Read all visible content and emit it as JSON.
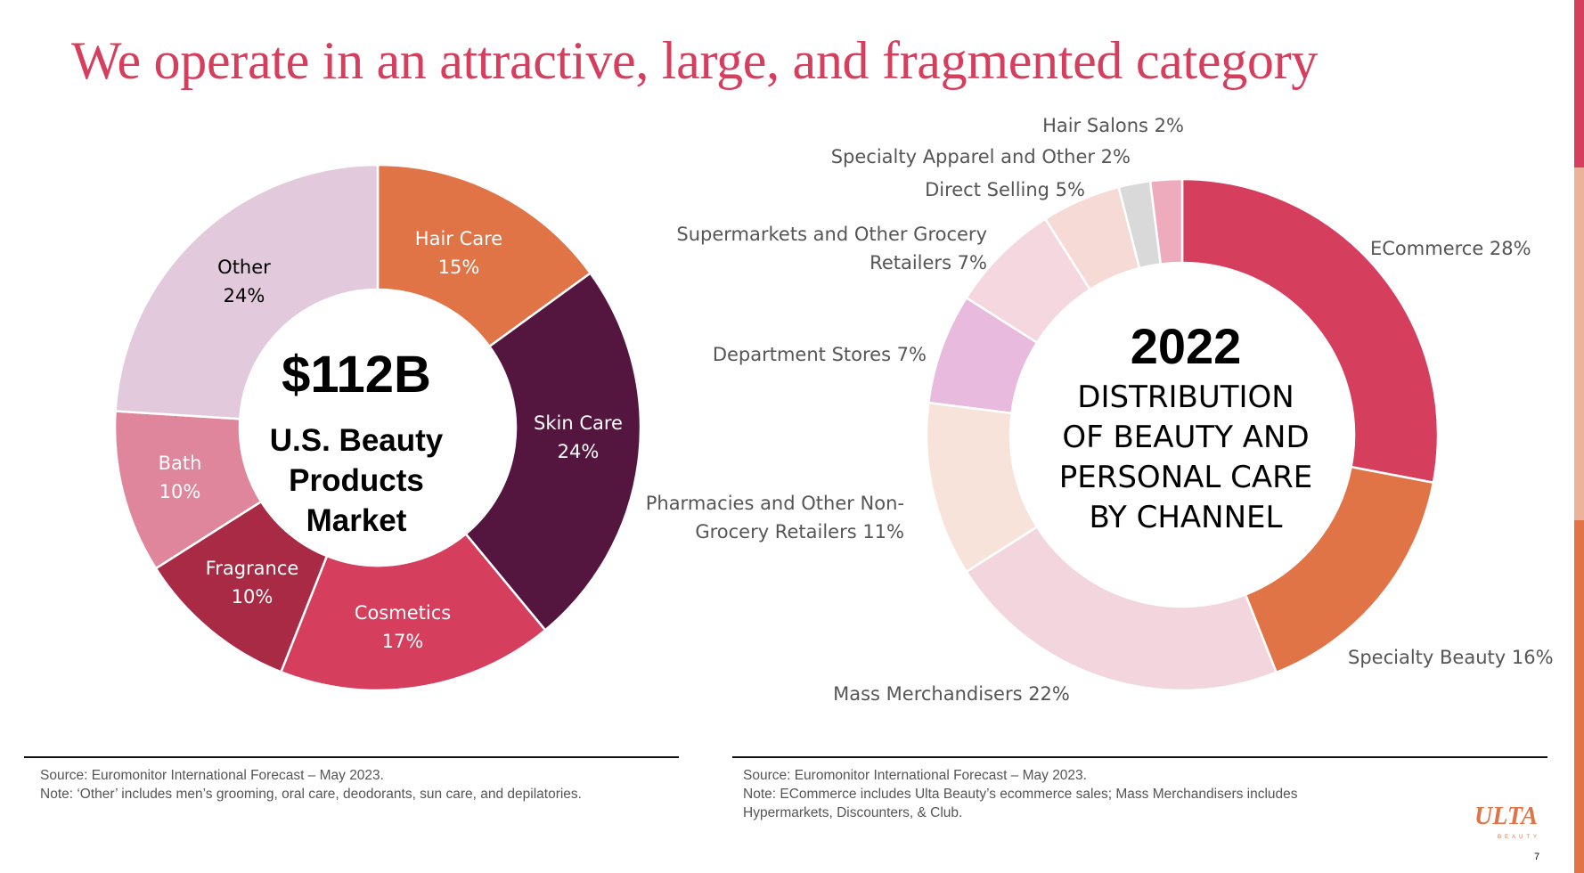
{
  "title": "We operate in an attractive, large, and fragmented category",
  "chart_data": [
    {
      "type": "pie",
      "variant": "donut",
      "start": "top",
      "direction": "clockwise",
      "center_title": "$112B",
      "center_subtitle": [
        "U.S. Beauty",
        "Products",
        "Market"
      ],
      "categories": [
        "Hair Care",
        "Skin Care",
        "Cosmetics",
        "Fragrance",
        "Bath",
        "Other"
      ],
      "values": [
        15,
        24,
        17,
        10,
        10,
        24
      ],
      "value_labels": [
        "15%",
        "24%",
        "17%",
        "10%",
        "10%",
        "24%"
      ],
      "colors": [
        "#e07446",
        "#54163f",
        "#d63e5e",
        "#a82a44",
        "#e0869c",
        "#e2c9dc"
      ],
      "label_colors": [
        "#fff",
        "#fff",
        "#fff",
        "#fff",
        "#fff",
        "#000"
      ]
    },
    {
      "type": "pie",
      "variant": "donut",
      "start": "top",
      "direction": "clockwise",
      "center_title": "2022",
      "center_subtitle": [
        "DISTRIBUTION",
        "OF BEAUTY AND",
        "PERSONAL CARE",
        "BY CHANNEL"
      ],
      "categories": [
        "ECommerce",
        "Specialty Beauty",
        "Mass Merchandisers",
        "Pharmacies and Other Non-Grocery Retailers",
        "Department Stores",
        "Supermarkets and Other Grocery Retailers",
        "Direct Selling",
        "Specialty Apparel and Other",
        "Hair Salons"
      ],
      "values": [
        28,
        16,
        22,
        11,
        7,
        7,
        5,
        2,
        2
      ],
      "labels": [
        [
          "ECommerce 28%"
        ],
        [
          "Specialty Beauty 16%"
        ],
        [
          "Mass Merchandisers 22%"
        ],
        [
          "Pharmacies and Other Non-",
          "Grocery Retailers 11%"
        ],
        [
          "Department Stores 7%"
        ],
        [
          "Supermarkets and Other Grocery",
          "Retailers 7%"
        ],
        [
          "Direct Selling 5%"
        ],
        [
          "Specialty Apparel and Other 2%"
        ],
        [
          "Hair Salons 2%"
        ]
      ],
      "colors": [
        "#d63e5e",
        "#e07446",
        "#f2d5dd",
        "#f7e3da",
        "#e8badd",
        "#f4d7df",
        "#f5dad6",
        "#d9d9d9",
        "#eeabbd"
      ]
    }
  ],
  "footer_left": [
    "Source:  Euromonitor International Forecast – May 2023.",
    "Note: ‘Other’ includes men’s grooming, oral care, deodorants, sun care, and depilatories."
  ],
  "footer_right": [
    "Source:  Euromonitor International Forecast – May 2023.",
    "Note: ECommerce includes Ulta Beauty’s ecommerce sales; Mass Merchandisers includes",
    "Hypermarkets, Discounters, & Club."
  ],
  "logo": {
    "text": "ULTA",
    "sub": "BEAUTY"
  },
  "page_number": "7",
  "edge_colors": [
    "#d63e5e",
    "#ecb39a",
    "#e07446"
  ]
}
